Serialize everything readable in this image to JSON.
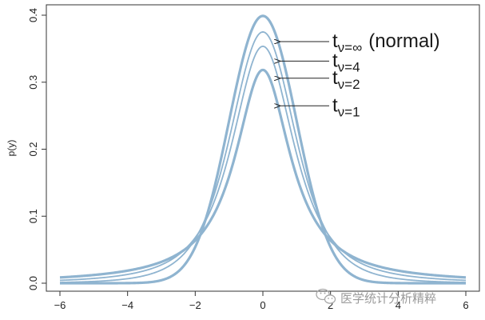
{
  "chart_data": {
    "type": "line",
    "title": "",
    "xlabel": "",
    "ylabel": "p(y)",
    "xlim": [
      -6,
      6
    ],
    "ylim": [
      0,
      0.4
    ],
    "xticks": [
      -6,
      -4,
      -2,
      0,
      2,
      4,
      6
    ],
    "xtick_labels": [
      "−6",
      "−4",
      "−2",
      "0",
      "2",
      "4",
      "6"
    ],
    "yticks": [
      0.0,
      0.1,
      0.2,
      0.3,
      0.4
    ],
    "ytick_labels": [
      "0.0",
      "0.1",
      "0.2",
      "0.3",
      "0.4"
    ],
    "grid": false,
    "line_color": "#8fb4d0",
    "series": [
      {
        "id": "normal",
        "nu": "inf",
        "label_sub": "ν=∞",
        "label_suffix": "(normal)",
        "peak": 0.399,
        "x": [
          -6,
          -4,
          -3,
          -2,
          -1.5,
          -1,
          -0.5,
          0,
          0.5,
          1,
          1.5,
          2,
          3,
          4,
          6
        ],
        "y": [
          0.0,
          0.0001,
          0.0044,
          0.054,
          0.1295,
          0.242,
          0.3521,
          0.3989,
          0.3521,
          0.242,
          0.1295,
          0.054,
          0.0044,
          0.0001,
          0.0
        ]
      },
      {
        "id": "nu4",
        "nu": 4,
        "label_sub": "ν=4",
        "label_suffix": "",
        "peak": 0.375,
        "x": [
          -6,
          -4,
          -3,
          -2,
          -1.5,
          -1,
          -0.5,
          0,
          0.5,
          1,
          1.5,
          2,
          3,
          4,
          6
        ],
        "y": [
          0.0022,
          0.0067,
          0.0197,
          0.0663,
          0.1264,
          0.2147,
          0.3222,
          0.375,
          0.3222,
          0.2147,
          0.1264,
          0.0663,
          0.0197,
          0.0067,
          0.0022
        ]
      },
      {
        "id": "nu2",
        "nu": 2,
        "label_sub": "ν=2",
        "label_suffix": "",
        "peak": 0.354,
        "x": [
          -6,
          -4,
          -3,
          -2,
          -1.5,
          -1,
          -0.5,
          0,
          0.5,
          1,
          1.5,
          2,
          3,
          4,
          6
        ],
        "y": [
          0.0044,
          0.0131,
          0.0274,
          0.068,
          0.1126,
          0.1925,
          0.2962,
          0.3536,
          0.2962,
          0.1925,
          0.1126,
          0.068,
          0.0274,
          0.0131,
          0.0044
        ]
      },
      {
        "id": "nu1",
        "nu": 1,
        "label_sub": "ν=1",
        "label_suffix": "",
        "peak": 0.318,
        "x": [
          -6,
          -4,
          -3,
          -2,
          -1.5,
          -1,
          -0.5,
          0,
          0.5,
          1,
          1.5,
          2,
          3,
          4,
          6
        ],
        "y": [
          0.0086,
          0.0187,
          0.0318,
          0.0637,
          0.0979,
          0.1592,
          0.2546,
          0.3183,
          0.2546,
          0.1592,
          0.0979,
          0.0637,
          0.0318,
          0.0187,
          0.0086
        ]
      }
    ],
    "annotations": [
      {
        "series": "normal",
        "text": "t",
        "arrow_to_x": 0.45
      },
      {
        "series": "nu4",
        "text": "t",
        "arrow_to_x": 0.45
      },
      {
        "series": "nu2",
        "text": "t",
        "arrow_to_x": 0.45
      },
      {
        "series": "nu1",
        "text": "t",
        "arrow_to_x": 0.45
      }
    ]
  },
  "watermark": {
    "icon": "wechat-icon",
    "text": "医学统计分析精粹"
  }
}
